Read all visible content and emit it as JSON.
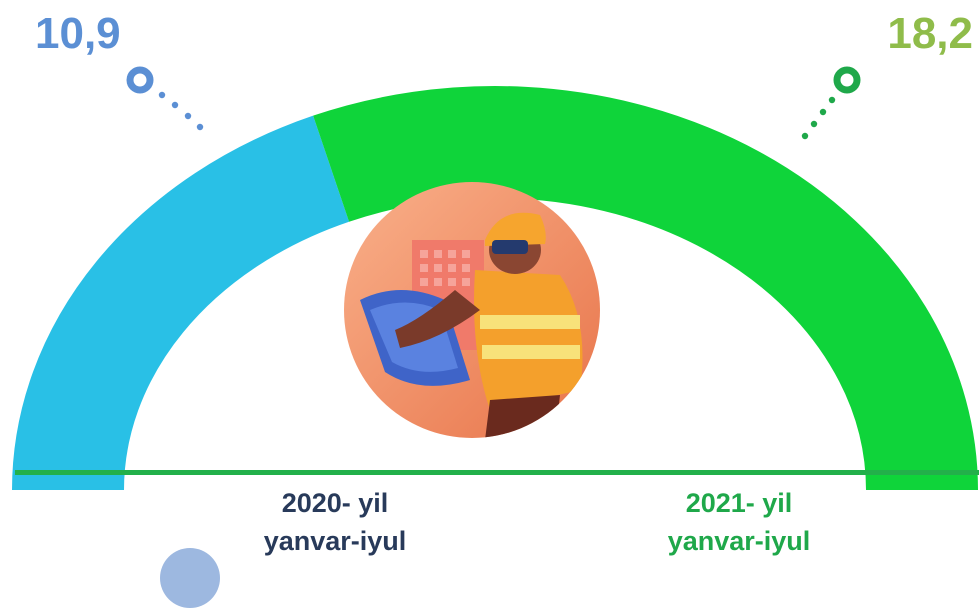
{
  "chart_data": {
    "type": "gauge",
    "series": [
      {
        "label": "10,9",
        "value": 10.9,
        "category_line1": "2020- yil",
        "category_line2": "yanvar-iyul",
        "color": "#29c0e6",
        "label_color": "#5b8fd4"
      },
      {
        "label": "18,2",
        "value": 18.2,
        "category_line1": "2021- yil",
        "category_line2": "yanvar-iyul",
        "color": "#0fd43a",
        "label_color": "#1fa84a"
      }
    ]
  },
  "icons": {
    "center": "construction-worker-icon"
  }
}
